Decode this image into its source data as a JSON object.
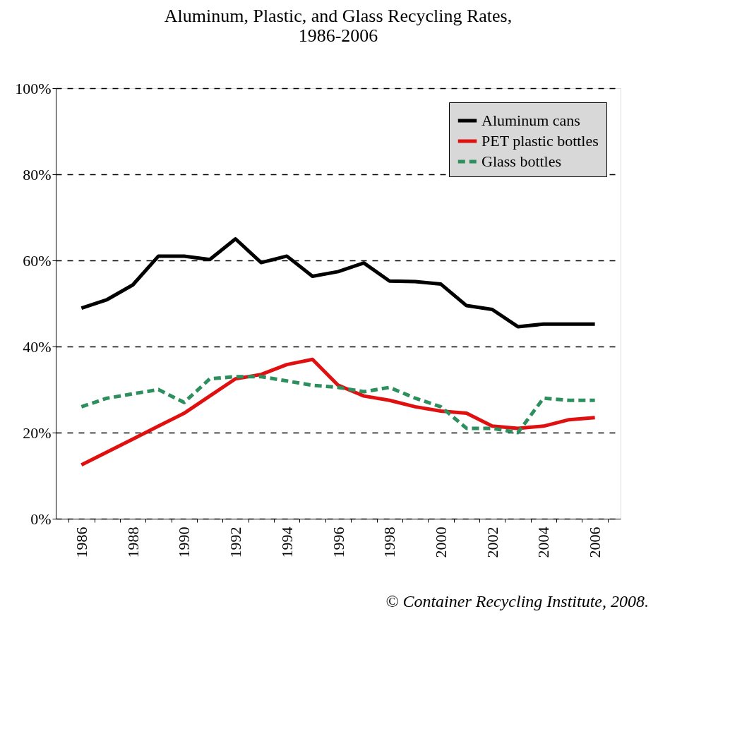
{
  "chart_data": {
    "type": "line",
    "title": "Aluminum, Plastic, and Glass Recycling Rates,\n1986-2006",
    "categories": [
      "1986",
      null,
      "1988",
      null,
      "1990",
      null,
      "1992",
      null,
      "1994",
      null,
      "1996",
      null,
      "1998",
      null,
      "2000",
      null,
      "2002",
      null,
      "2004",
      null,
      "2006"
    ],
    "series": [
      {
        "name": "Aluminum cans",
        "color": "#000000",
        "line_style": "solid",
        "values": [
          48.9,
          50.9,
          54.3,
          61,
          61,
          60.2,
          65,
          59.5,
          61,
          56.3,
          57.4,
          59.4,
          55.2,
          55.1,
          54.5,
          49.5,
          48.6,
          44.6,
          45.2,
          45.2,
          45.2
        ]
      },
      {
        "name": "PET plastic bottles",
        "color": "#e01010",
        "line_style": "solid",
        "values": [
          12.5,
          15.5,
          18.5,
          21.5,
          24.5,
          28.5,
          32.5,
          33.5,
          35.8,
          37,
          31,
          28.5,
          27.5,
          26,
          25,
          24.5,
          21.5,
          21,
          21.5,
          23,
          23.5
        ]
      },
      {
        "name": "Glass bottles",
        "color": "#2e8f5e",
        "line_style": "dashed",
        "values": [
          26,
          28,
          29,
          30,
          27,
          32.5,
          33,
          33,
          32,
          31,
          30.5,
          29.5,
          30.5,
          28,
          26,
          21,
          21,
          20,
          28,
          27.5,
          27.5
        ]
      }
    ],
    "ylim": [
      0,
      100
    ],
    "yticks": [
      {
        "value": 0,
        "label": "0%"
      },
      {
        "value": 20,
        "label": "20%"
      },
      {
        "value": 40,
        "label": "40%"
      },
      {
        "value": 60,
        "label": "60%"
      },
      {
        "value": 80,
        "label": "80%"
      },
      {
        "value": 100,
        "label": "100%"
      }
    ],
    "grid": "y",
    "legend": "top right",
    "annotations": [
      "© Container Recycling Institute, 2008."
    ]
  }
}
